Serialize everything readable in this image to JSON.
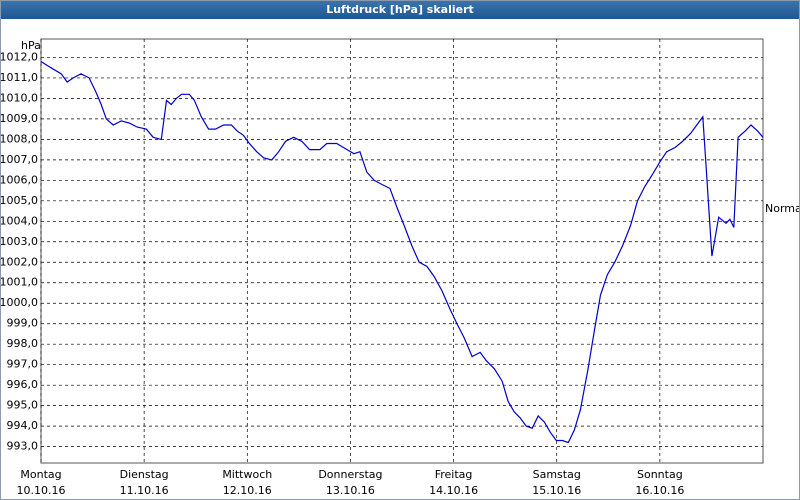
{
  "chart_data": {
    "type": "line",
    "title": "Luftdruck [hPa] skaliert",
    "y_unit": "hPa",
    "annotation": "Normal",
    "color": "#0000cc",
    "grid": true,
    "xlim": [
      0,
      168
    ],
    "xticks": [
      {
        "value": 0,
        "label": "Montag"
      },
      {
        "value": 24,
        "label": "Dienstag"
      },
      {
        "value": 48,
        "label": "Mittwoch"
      },
      {
        "value": 72,
        "label": "Donnerstag"
      },
      {
        "value": 96,
        "label": "Freitag"
      },
      {
        "value": 120,
        "label": "Samstag"
      },
      {
        "value": 144,
        "label": "Sonntag"
      }
    ],
    "xtick_dates": [
      "10.10.16",
      "11.10.16",
      "12.10.16",
      "13.10.16",
      "14.10.16",
      "15.10.16",
      "16.10.16"
    ],
    "ylim": [
      992.2,
      1012.9
    ],
    "yticks": [
      {
        "value": 993,
        "label": "993,0"
      },
      {
        "value": 994,
        "label": "994,0"
      },
      {
        "value": 995,
        "label": "995,0"
      },
      {
        "value": 996,
        "label": "996,0"
      },
      {
        "value": 997,
        "label": "997,0"
      },
      {
        "value": 998,
        "label": "998,0"
      },
      {
        "value": 999,
        "label": "999,0"
      },
      {
        "value": 1000,
        "label": "1000,0"
      },
      {
        "value": 1001,
        "label": "1001,0"
      },
      {
        "value": 1002,
        "label": "1002,0"
      },
      {
        "value": 1003,
        "label": "1003,0"
      },
      {
        "value": 1004,
        "label": "1004,0"
      },
      {
        "value": 1005,
        "label": "1005,0"
      },
      {
        "value": 1006,
        "label": "1006,0"
      },
      {
        "value": 1007,
        "label": "1007,0"
      },
      {
        "value": 1008,
        "label": "1008,0"
      },
      {
        "value": 1009,
        "label": "1009,0"
      },
      {
        "value": 1010,
        "label": "1010,0"
      },
      {
        "value": 1011,
        "label": "1011,0"
      },
      {
        "value": 1012,
        "label": "1012,0"
      }
    ],
    "x": [
      0,
      2.3,
      4.7,
      6.1,
      7.5,
      9.3,
      11.2,
      12.8,
      14,
      15.2,
      16.8,
      18.7,
      20.5,
      22.4,
      24.5,
      26.1,
      28,
      29.2,
      30.3,
      31.5,
      32.7,
      34.5,
      35.7,
      37.3,
      39,
      40.6,
      42.5,
      44.3,
      45.7,
      47.1,
      48.5,
      50.2,
      51.8,
      53.7,
      55.3,
      56.9,
      58.8,
      60.7,
      62.5,
      64.9,
      66.5,
      68.8,
      71.2,
      72.8,
      74.2,
      75.8,
      77.5,
      79.3,
      81.2,
      82.8,
      84.5,
      86.3,
      88,
      89.8,
      91.5,
      93.3,
      95.2,
      96.8,
      98.5,
      100.3,
      102.2,
      103.6,
      105.5,
      107.3,
      108.7,
      110.1,
      111.5,
      112.9,
      114.3,
      115.7,
      117.1,
      118.5,
      119.9,
      121.3,
      122.7,
      124.1,
      125.5,
      127.2,
      128.8,
      130.2,
      131.8,
      133.5,
      135.3,
      137.2,
      138.8,
      140.5,
      142.3,
      144,
      145.6,
      147.5,
      149.3,
      151.2,
      152.6,
      154,
      154.7,
      156.1,
      157.7,
      159.4,
      160.3,
      161.2,
      162.2,
      163.8,
      165.2,
      166.8,
      168
    ],
    "values": [
      1011.8,
      1011.5,
      1011.2,
      1010.8,
      1011.0,
      1011.2,
      1011.0,
      1010.3,
      1009.7,
      1009.0,
      1008.7,
      1008.9,
      1008.8,
      1008.6,
      1008.5,
      1008.1,
      1008.0,
      1009.9,
      1009.7,
      1010.0,
      1010.2,
      1010.2,
      1009.9,
      1009.1,
      1008.5,
      1008.5,
      1008.7,
      1008.7,
      1008.4,
      1008.2,
      1007.8,
      1007.4,
      1007.1,
      1007.0,
      1007.4,
      1007.9,
      1008.1,
      1007.9,
      1007.5,
      1007.5,
      1007.8,
      1007.8,
      1007.5,
      1007.3,
      1007.4,
      1006.4,
      1006.0,
      1005.8,
      1005.6,
      1004.7,
      1003.8,
      1002.8,
      1002.0,
      1001.8,
      1001.3,
      1000.6,
      999.7,
      999.0,
      998.3,
      997.4,
      997.6,
      997.2,
      996.8,
      996.2,
      995.2,
      994.7,
      994.4,
      994.0,
      993.9,
      994.5,
      994.2,
      993.7,
      993.3,
      993.3,
      993.2,
      993.8,
      994.8,
      996.7,
      998.7,
      1000.4,
      1001.4,
      1002.0,
      1002.8,
      1003.8,
      1005.0,
      1005.7,
      1006.3,
      1006.9,
      1007.4,
      1007.6,
      1007.9,
      1008.3,
      1008.7,
      1009.1,
      1006.9,
      1002.3,
      1004.2,
      1003.9,
      1004.1,
      1003.7,
      1008.1,
      1008.4,
      1008.7,
      1008.4,
      1008.1
    ]
  }
}
